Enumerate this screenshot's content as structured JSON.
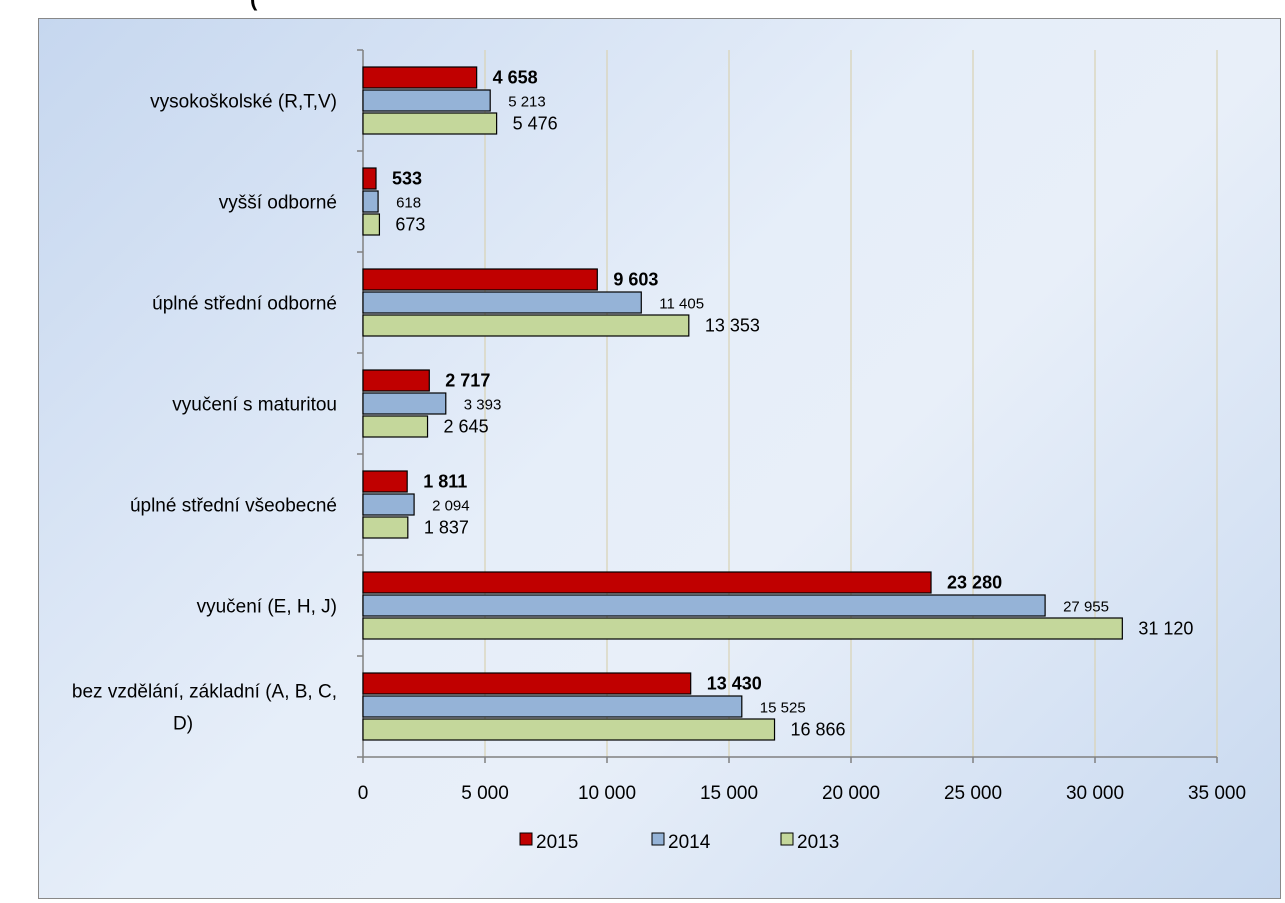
{
  "chart_data": {
    "type": "bar",
    "orientation": "horizontal",
    "title_fragment": "(",
    "categories": [
      "vysokoškolské (R,T,V)",
      "vyšší odborné",
      "úplné střední odborné",
      "vyučení s maturitou",
      "úplné střední všeobecné",
      "vyučení (E, H, J)",
      "bez vzdělání, základní (A, B, C, D)"
    ],
    "category_label_lines": [
      [
        "vysokoškolské (R,T,V)"
      ],
      [
        "vyšší odborné"
      ],
      [
        "úplné střední odborné"
      ],
      [
        "vyučení s maturitou"
      ],
      [
        "úplné střední všeobecné"
      ],
      [
        "vyučení (E, H, J)"
      ],
      [
        "bez vzdělání, základní (A, B, C,",
        "D)"
      ]
    ],
    "series": [
      {
        "name": "2015",
        "color": "#c00000",
        "values": [
          4658,
          533,
          9603,
          2717,
          1811,
          23280,
          13430
        ],
        "labels": [
          "4 658",
          "533",
          "9 603",
          "2 717",
          "1 811",
          "23 280",
          "13 430"
        ]
      },
      {
        "name": "2014",
        "color": "#95b3d7",
        "values": [
          5213,
          618,
          11405,
          3393,
          2094,
          27955,
          15525
        ],
        "labels": [
          "5 213",
          "618",
          "11 405",
          "3 393",
          "2 094",
          "27 955",
          "15 525"
        ]
      },
      {
        "name": "2013",
        "color": "#c4d79b",
        "values": [
          5476,
          673,
          13353,
          2645,
          1837,
          31120,
          16866
        ],
        "labels": [
          "5 476",
          "673",
          "13 353",
          "2 645",
          "1 837",
          "31 120",
          "16 866"
        ]
      }
    ],
    "xlim": [
      0,
      35000
    ],
    "xticks": [
      0,
      5000,
      10000,
      15000,
      20000,
      25000,
      30000,
      35000
    ],
    "xtick_labels": [
      "0",
      "5 000",
      "10 000",
      "15 000",
      "20 000",
      "25 000",
      "30 000",
      "35 000"
    ],
    "grid": true,
    "legend_position": "bottom"
  }
}
